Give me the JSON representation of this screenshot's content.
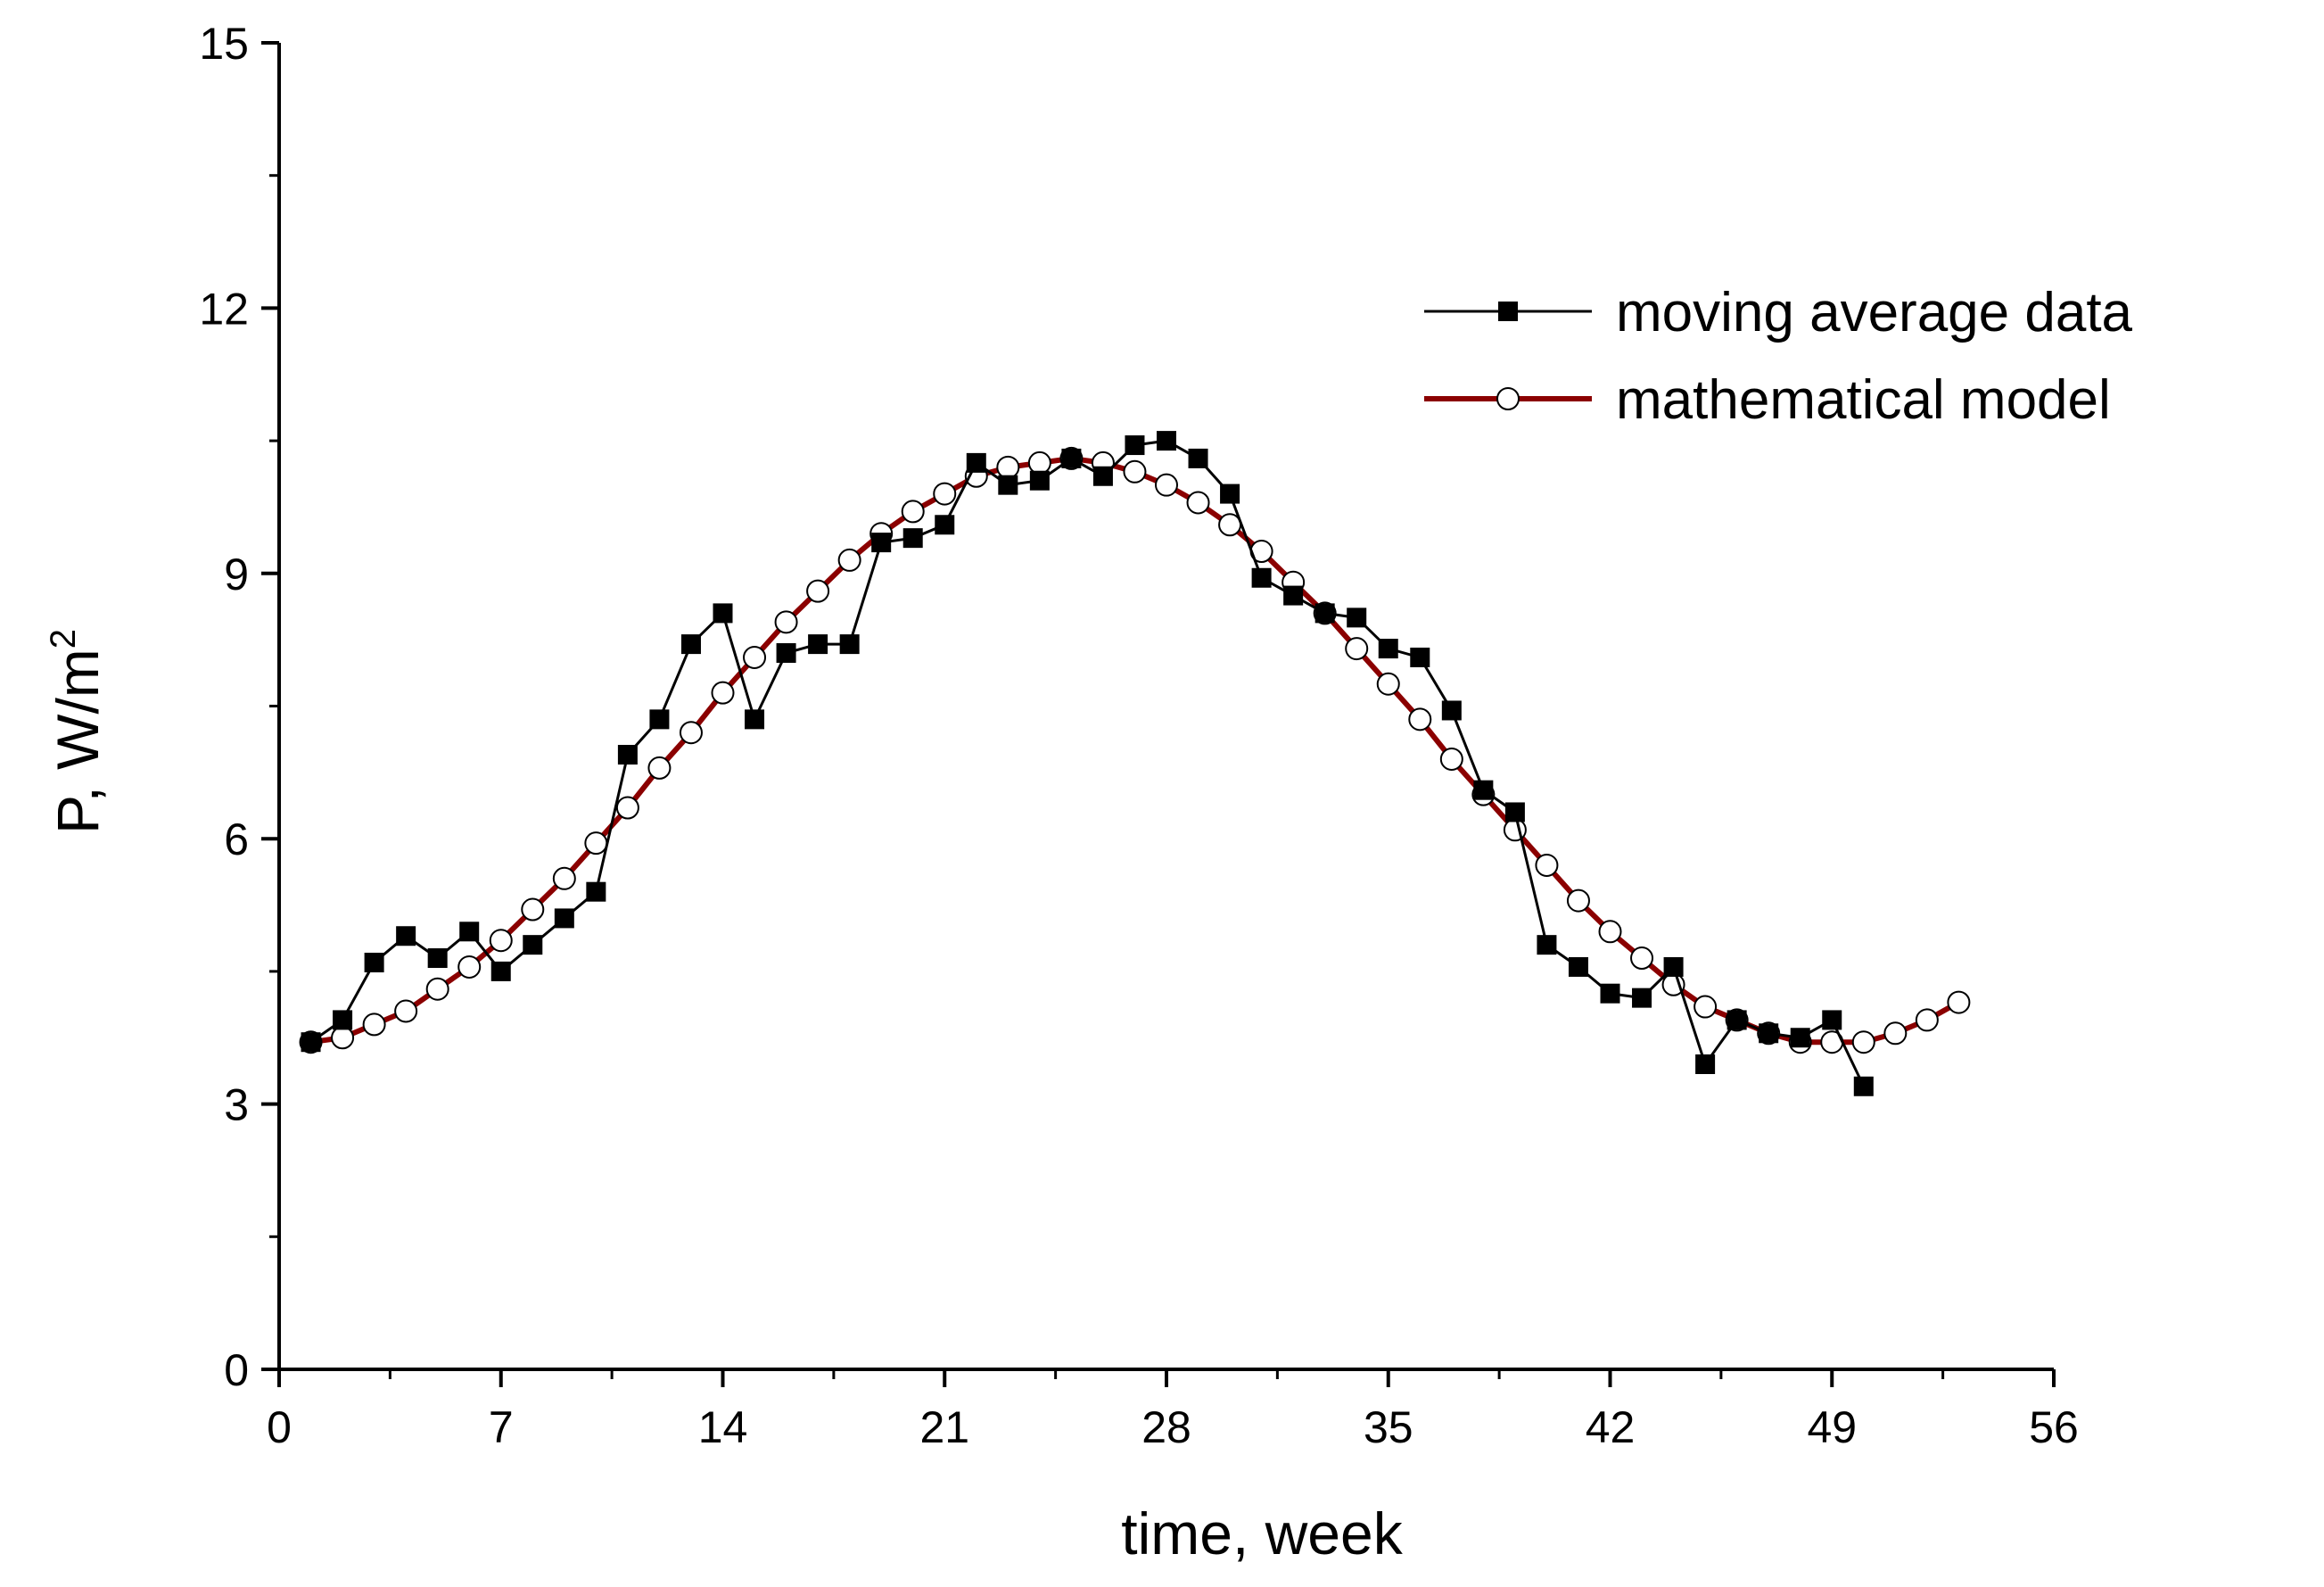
{
  "chart_data": {
    "type": "line",
    "title": "",
    "xlabel": "time, week",
    "ylabel_main": "P, W/m",
    "ylabel_sup": "2",
    "xlim": [
      0,
      56
    ],
    "ylim": [
      0,
      15
    ],
    "xticks": [
      0,
      7,
      14,
      21,
      28,
      35,
      42,
      49,
      56
    ],
    "yticks": [
      0,
      3,
      6,
      9,
      12,
      15
    ],
    "grid": false,
    "legend_position": "top-right",
    "series": [
      {
        "name": "moving average data",
        "marker": "square-filled",
        "color": "#000000",
        "x": [
          1,
          2,
          3,
          4,
          5,
          6,
          7,
          8,
          9,
          10,
          11,
          12,
          13,
          14,
          15,
          16,
          17,
          18,
          19,
          20,
          21,
          22,
          23,
          24,
          25,
          26,
          27,
          28,
          29,
          30,
          31,
          32,
          33,
          34,
          35,
          36,
          37,
          38,
          39,
          40,
          41,
          42,
          43,
          44,
          45,
          46,
          47,
          48,
          49,
          50
        ],
        "values": [
          3.7,
          3.95,
          4.6,
          4.9,
          4.65,
          4.95,
          4.5,
          4.8,
          5.1,
          5.4,
          6.95,
          7.35,
          8.2,
          8.55,
          7.35,
          8.1,
          8.2,
          8.2,
          9.35,
          9.4,
          9.55,
          10.25,
          10.0,
          10.05,
          10.3,
          10.1,
          10.45,
          10.5,
          10.3,
          9.9,
          8.95,
          8.75,
          8.55,
          8.5,
          8.15,
          8.05,
          7.45,
          6.55,
          6.3,
          4.8,
          4.55,
          4.25,
          4.2,
          4.55,
          3.45,
          3.95,
          3.8,
          3.75,
          3.95,
          3.2
        ]
      },
      {
        "name": "mathematical model",
        "marker": "circle-open",
        "color": "#8b0000",
        "x": [
          1,
          2,
          3,
          4,
          5,
          6,
          7,
          8,
          9,
          10,
          11,
          12,
          13,
          14,
          15,
          16,
          17,
          18,
          19,
          20,
          21,
          22,
          23,
          24,
          25,
          26,
          27,
          28,
          29,
          30,
          31,
          32,
          33,
          34,
          35,
          36,
          37,
          38,
          39,
          40,
          41,
          42,
          43,
          44,
          45,
          46,
          47,
          48,
          49,
          50,
          51,
          52,
          53
        ],
        "values": [
          3.7,
          3.75,
          3.9,
          4.05,
          4.3,
          4.55,
          4.85,
          5.2,
          5.55,
          5.95,
          6.35,
          6.8,
          7.2,
          7.65,
          8.05,
          8.45,
          8.8,
          9.15,
          9.45,
          9.7,
          9.9,
          10.1,
          10.2,
          10.25,
          10.3,
          10.25,
          10.15,
          10.0,
          9.8,
          9.55,
          9.25,
          8.9,
          8.55,
          8.15,
          7.75,
          7.35,
          6.9,
          6.5,
          6.1,
          5.7,
          5.3,
          4.95,
          4.65,
          4.35,
          4.1,
          3.95,
          3.8,
          3.7,
          3.7,
          3.7,
          3.8,
          3.95,
          4.15
        ]
      }
    ]
  }
}
